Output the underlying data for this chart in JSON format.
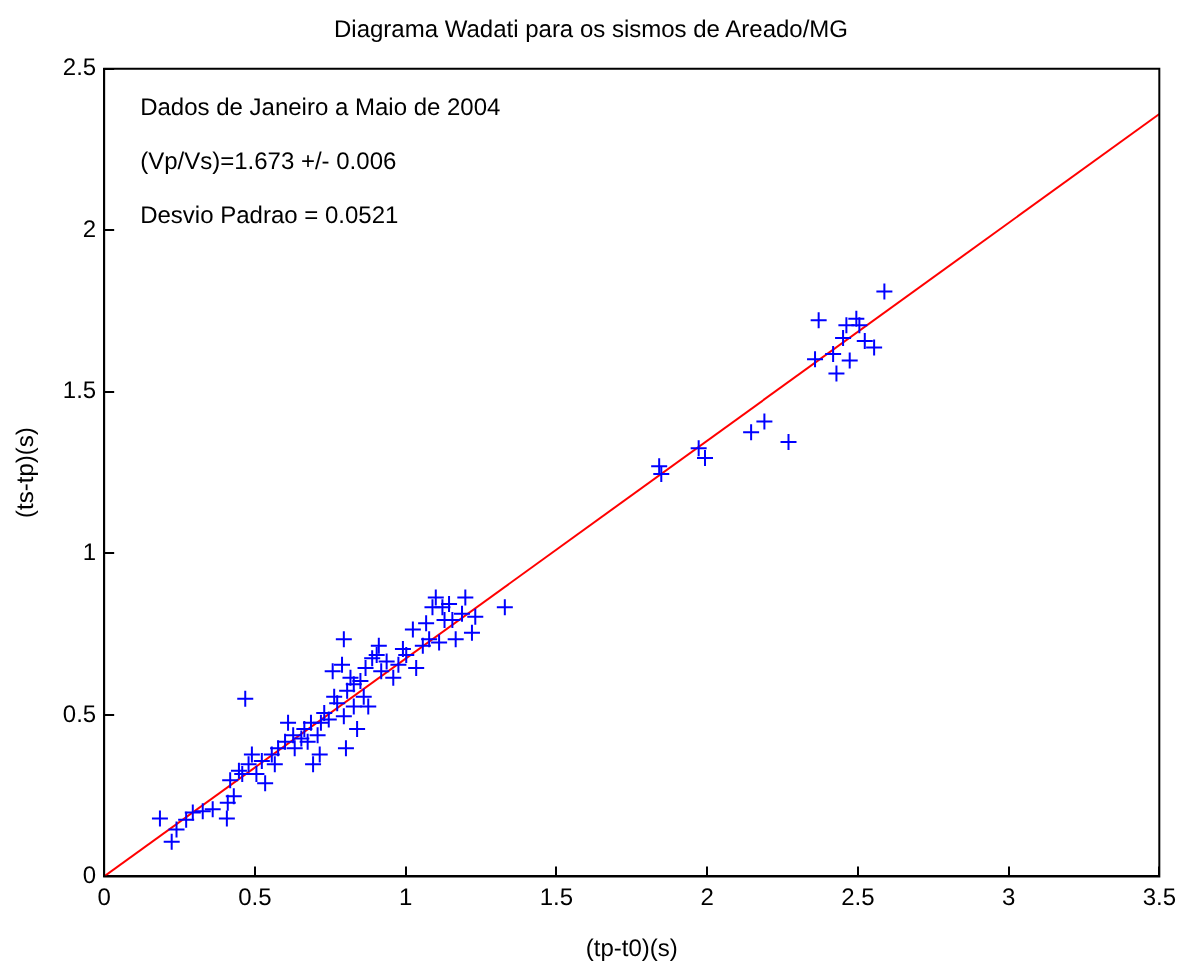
{
  "chart_data": {
    "type": "scatter",
    "title": "Diagrama Wadati para os sismos de Areado/MG",
    "xlabel": "(tp-t0)(s)",
    "ylabel": "(ts-tp)(s)",
    "annotations": [
      "Dados de Janeiro a Maio de 2004",
      "(Vp/Vs)=1.673 +/- 0.006",
      "Desvio Padrao = 0.0521"
    ],
    "xlim": [
      0,
      3.5
    ],
    "xticks": [
      0,
      0.5,
      1,
      1.5,
      2,
      2.5,
      3,
      3.5
    ],
    "ylim": [
      0,
      2.5
    ],
    "yticks": [
      0,
      0.5,
      1,
      1.5,
      2,
      2.5
    ],
    "grid": false,
    "legend": false,
    "series": [
      {
        "color": "#0000ff",
        "marker": "cross",
        "x": [
          0.185,
          0.224,
          0.24,
          0.272,
          0.294,
          0.327,
          0.36,
          0.407,
          0.41,
          0.43,
          0.418,
          0.447,
          0.468,
          0.479,
          0.505,
          0.523,
          0.534,
          0.556,
          0.577,
          0.6,
          0.61,
          0.627,
          0.654,
          0.664,
          0.686,
          0.693,
          0.708,
          0.715,
          0.73,
          0.745,
          0.758,
          0.773,
          0.789,
          0.795,
          0.802,
          0.806,
          0.817,
          0.828,
          0.839,
          0.85,
          0.867,
          0.876,
          0.889,
          0.911,
          0.919,
          0.937,
          0.959,
          0.976,
          1.002,
          1.024,
          1.035,
          1.057,
          1.068,
          1.089,
          1.1,
          1.111,
          1.129,
          1.144,
          1.166,
          1.187,
          1.198,
          1.22,
          1.231,
          1.329,
          0.458,
          0.49,
          0.566,
          0.632,
          0.675,
          0.719,
          0.763,
          0.795,
          0.828,
          0.861,
          0.904,
          0.991,
          1.078,
          1.122,
          1.155,
          1.841,
          1.848,
          1.972,
          1.993,
          2.146,
          2.19,
          2.27,
          2.37,
          2.358,
          2.418,
          2.429,
          2.451,
          2.462,
          2.473,
          2.495,
          2.505,
          2.523,
          2.554,
          2.588
        ],
        "values": [
          0.179,
          0.107,
          0.145,
          0.175,
          0.198,
          0.202,
          0.208,
          0.179,
          0.228,
          0.248,
          0.298,
          0.327,
          0.55,
          0.347,
          0.317,
          0.357,
          0.288,
          0.377,
          0.397,
          0.417,
          0.476,
          0.437,
          0.427,
          0.456,
          0.476,
          0.347,
          0.437,
          0.377,
          0.506,
          0.486,
          0.635,
          0.536,
          0.655,
          0.734,
          0.397,
          0.575,
          0.615,
          0.526,
          0.456,
          0.605,
          0.645,
          0.526,
          0.675,
          0.714,
          0.635,
          0.665,
          0.615,
          0.655,
          0.685,
          0.764,
          0.645,
          0.714,
          0.784,
          0.833,
          0.863,
          0.724,
          0.794,
          0.843,
          0.734,
          0.813,
          0.863,
          0.754,
          0.804,
          0.833,
          0.317,
          0.377,
          0.347,
          0.397,
          0.417,
          0.476,
          0.556,
          0.496,
          0.595,
          0.556,
          0.685,
          0.704,
          0.734,
          0.833,
          0.794,
          1.27,
          1.246,
          1.325,
          1.295,
          1.375,
          1.408,
          1.345,
          1.722,
          1.601,
          1.617,
          1.557,
          1.667,
          1.706,
          1.597,
          1.726,
          1.706,
          1.657,
          1.637,
          1.811
        ]
      },
      {
        "type": "line",
        "color": "#ff0000",
        "marker": "none",
        "line_style": "solid",
        "x": [
          0,
          3.5
        ],
        "values": [
          0,
          2.36
        ]
      }
    ]
  }
}
